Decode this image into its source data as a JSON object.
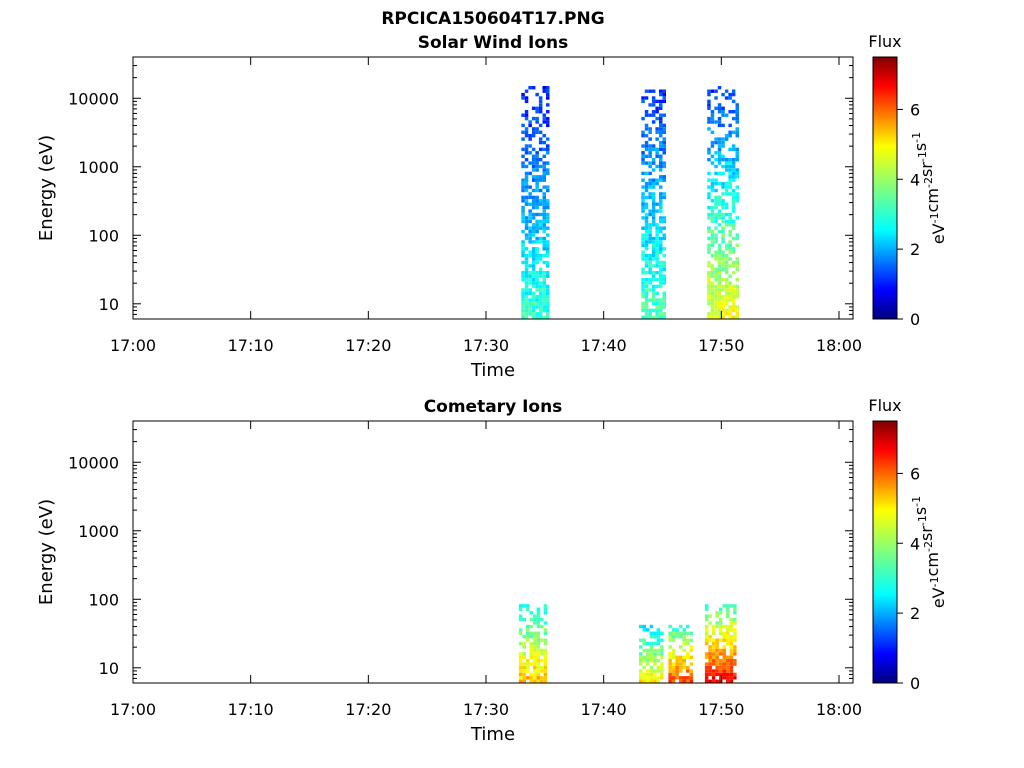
{
  "figure": {
    "title": "RPCICA150604T17.PNG"
  },
  "chart_data": [
    {
      "type": "heatmap",
      "title": "Solar Wind Ions",
      "xlabel": "Time",
      "ylabel": "Energy (eV)",
      "x_ticks": [
        "17:00",
        "17:10",
        "17:20",
        "17:30",
        "17:40",
        "17:50",
        "18:00"
      ],
      "x_range_minutes": [
        0,
        60
      ],
      "y_scale": "log",
      "y_ticks": [
        "10",
        "100",
        "1000",
        "10000"
      ],
      "y_range": [
        6,
        40000
      ],
      "colorbar": {
        "title": "Flux",
        "label": "eV-1cm-2sr-1s-1",
        "ticks": [
          "0",
          "2",
          "4",
          "6"
        ],
        "range": [
          0,
          7.5
        ],
        "colormap": "jet"
      },
      "bursts": [
        {
          "t_start": 33.0,
          "t_end": 35.2,
          "e_min": 6,
          "e_max": 14000,
          "flux_low_energy": 3.2,
          "flux_high_energy": 1.1
        },
        {
          "t_start": 43.2,
          "t_end": 45.0,
          "e_min": 6,
          "e_max": 12000,
          "flux_low_energy": 3.4,
          "flux_high_energy": 1.3
        },
        {
          "t_start": 48.8,
          "t_end": 51.2,
          "e_min": 6,
          "e_max": 14000,
          "flux_low_energy": 4.6,
          "flux_high_energy": 1.3
        }
      ]
    },
    {
      "type": "heatmap",
      "title": "Cometary Ions",
      "xlabel": "Time",
      "ylabel": "Energy (eV)",
      "x_ticks": [
        "17:00",
        "17:10",
        "17:20",
        "17:30",
        "17:40",
        "17:50",
        "18:00"
      ],
      "x_range_minutes": [
        0,
        60
      ],
      "y_scale": "log",
      "y_ticks": [
        "10",
        "100",
        "1000",
        "10000"
      ],
      "y_range": [
        6,
        40000
      ],
      "colorbar": {
        "title": "Flux",
        "label": "eV-1cm-2sr-1s-1",
        "ticks": [
          "0",
          "2",
          "4",
          "6"
        ],
        "range": [
          0,
          7.5
        ],
        "colormap": "jet"
      },
      "bursts": [
        {
          "t_start": 32.8,
          "t_end": 35.0,
          "e_min": 6,
          "e_max": 80,
          "flux_low_energy": 5.2,
          "flux_high_energy": 2.8
        },
        {
          "t_start": 43.0,
          "t_end": 44.8,
          "e_min": 6,
          "e_max": 40,
          "flux_low_energy": 4.8,
          "flux_high_energy": 2.6
        },
        {
          "t_start": 45.5,
          "t_end": 47.4,
          "e_min": 6,
          "e_max": 40,
          "flux_low_energy": 6.0,
          "flux_high_energy": 3.2
        },
        {
          "t_start": 48.6,
          "t_end": 51.0,
          "e_min": 6,
          "e_max": 80,
          "flux_low_energy": 6.6,
          "flux_high_energy": 3.2
        }
      ]
    }
  ]
}
